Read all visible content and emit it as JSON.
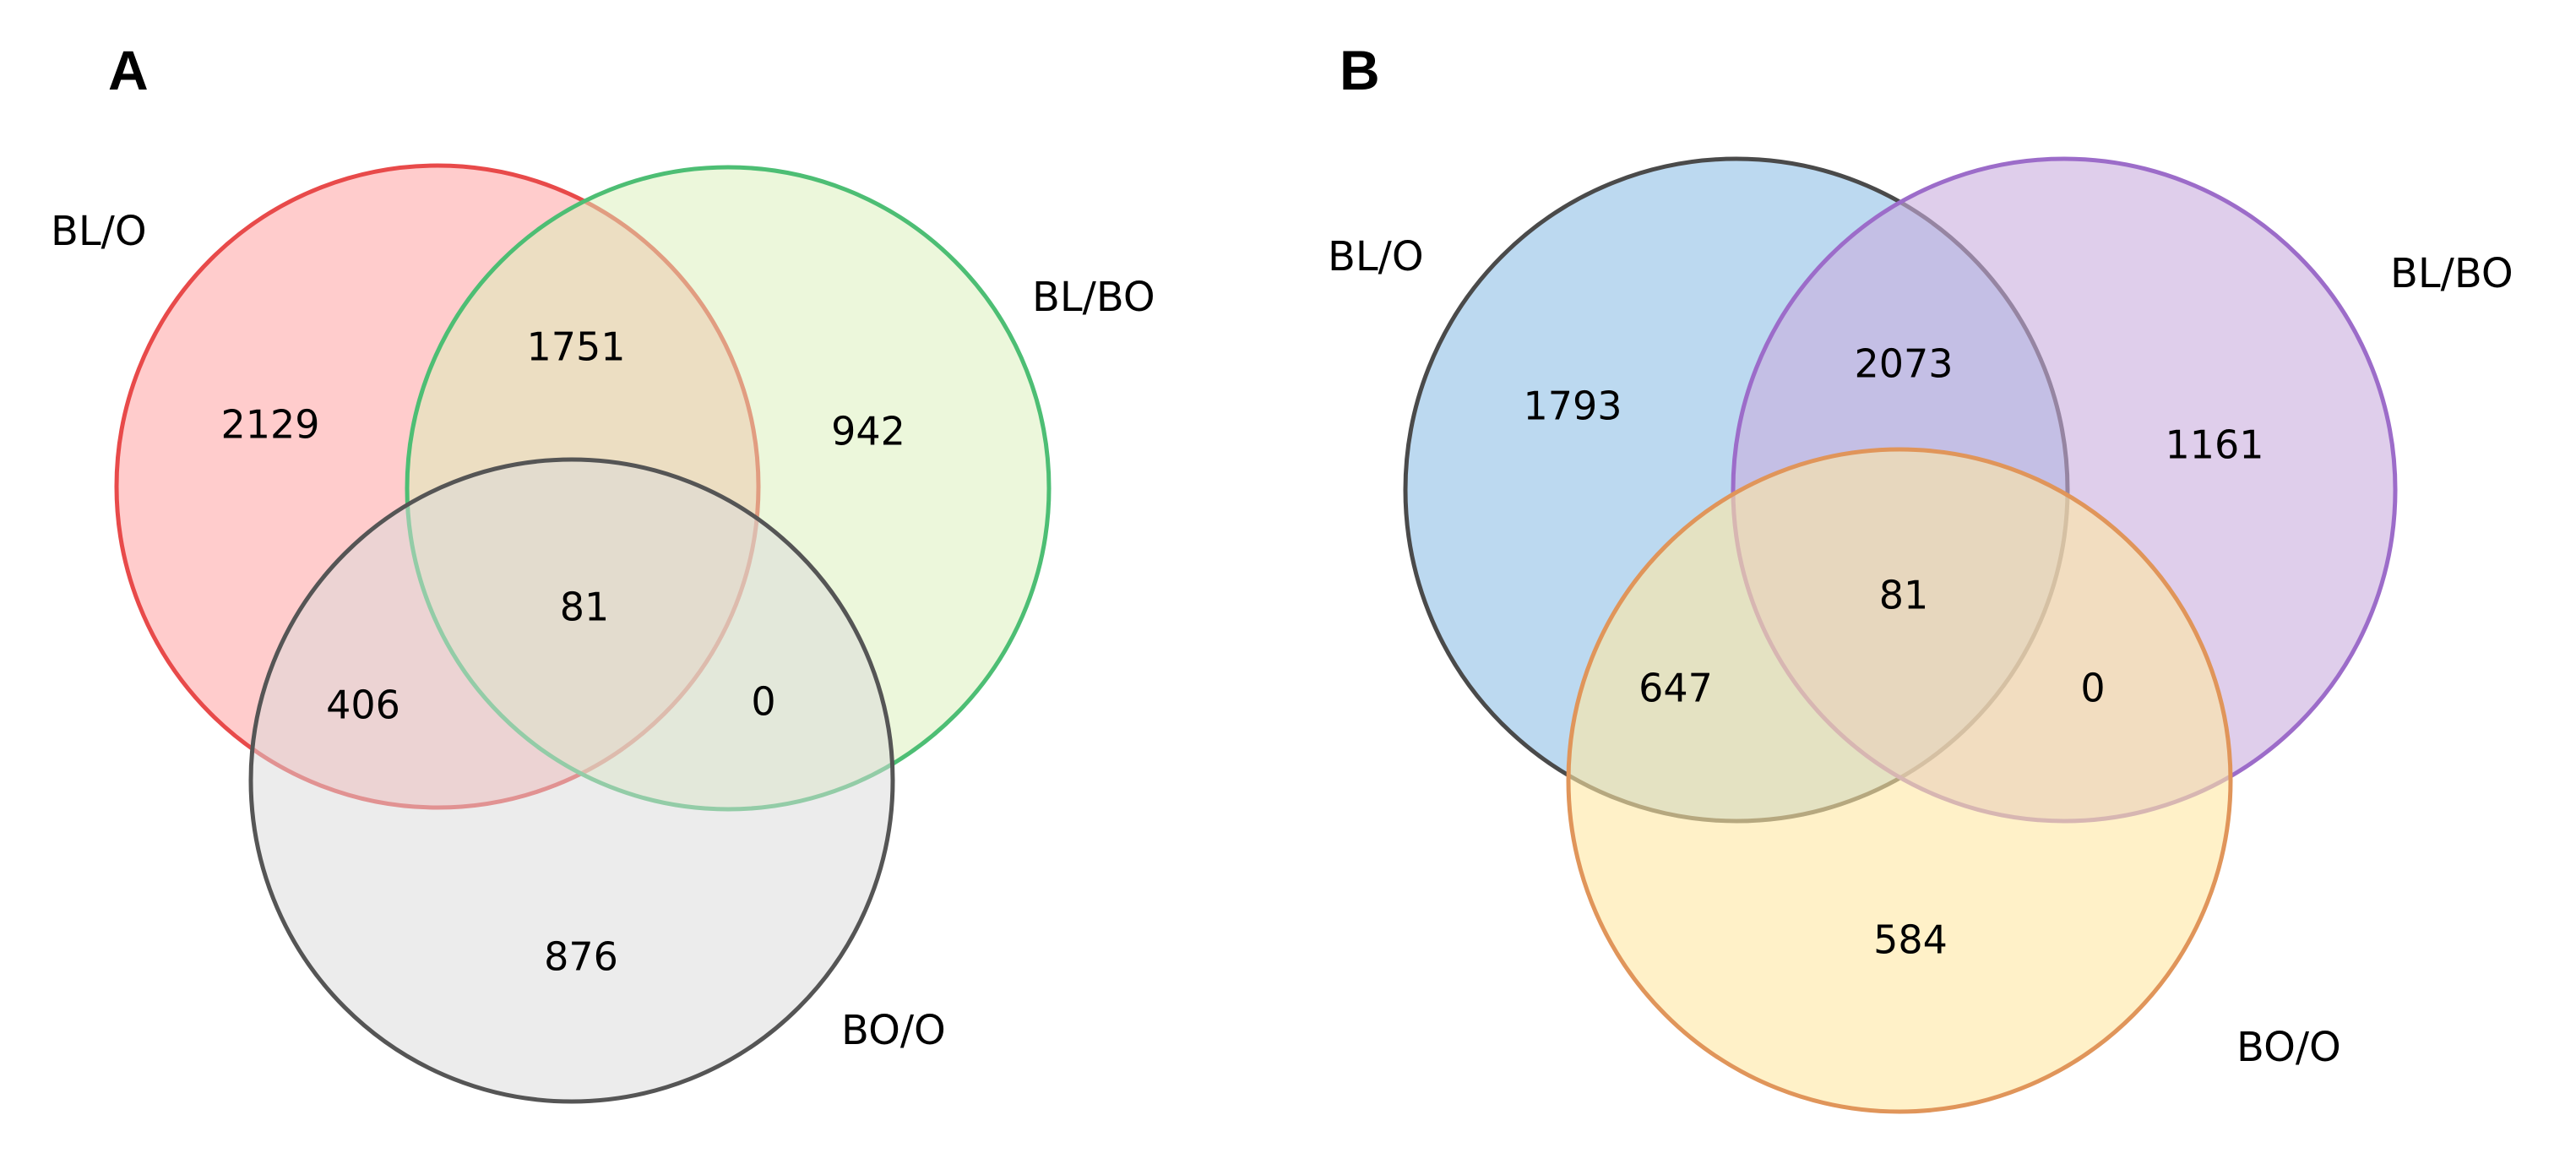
{
  "panels": [
    {
      "letter": "A",
      "sets": [
        {
          "name": "BL/O",
          "fill": "#FF9999",
          "stroke": "#E84A4A"
        },
        {
          "name": "BL/BO",
          "fill": "#D9EFB8",
          "stroke": "#4DBE74"
        },
        {
          "name": "BO/O",
          "fill": "#D9D9D9",
          "stroke": "#555555"
        }
      ],
      "regions": {
        "set1_only": "2129",
        "set1_set2": "1751",
        "set2_only": "942",
        "all_three": "81",
        "set1_set3": "406",
        "set2_set3": "0",
        "set3_only": "876"
      }
    },
    {
      "letter": "B",
      "sets": [
        {
          "name": "BL/O",
          "fill": "#8FBFE6",
          "stroke": "#4A4A4A"
        },
        {
          "name": "BL/BO",
          "fill": "#C9AEDD",
          "stroke": "#9C6CC9"
        },
        {
          "name": "BO/O",
          "fill": "#FFE7A3",
          "stroke": "#E0955A"
        }
      ],
      "regions": {
        "set1_only": "1793",
        "set1_set2": "2073",
        "set2_only": "1161",
        "all_three": "81",
        "set1_set3": "647",
        "set2_set3": "0",
        "set3_only": "584"
      }
    }
  ]
}
